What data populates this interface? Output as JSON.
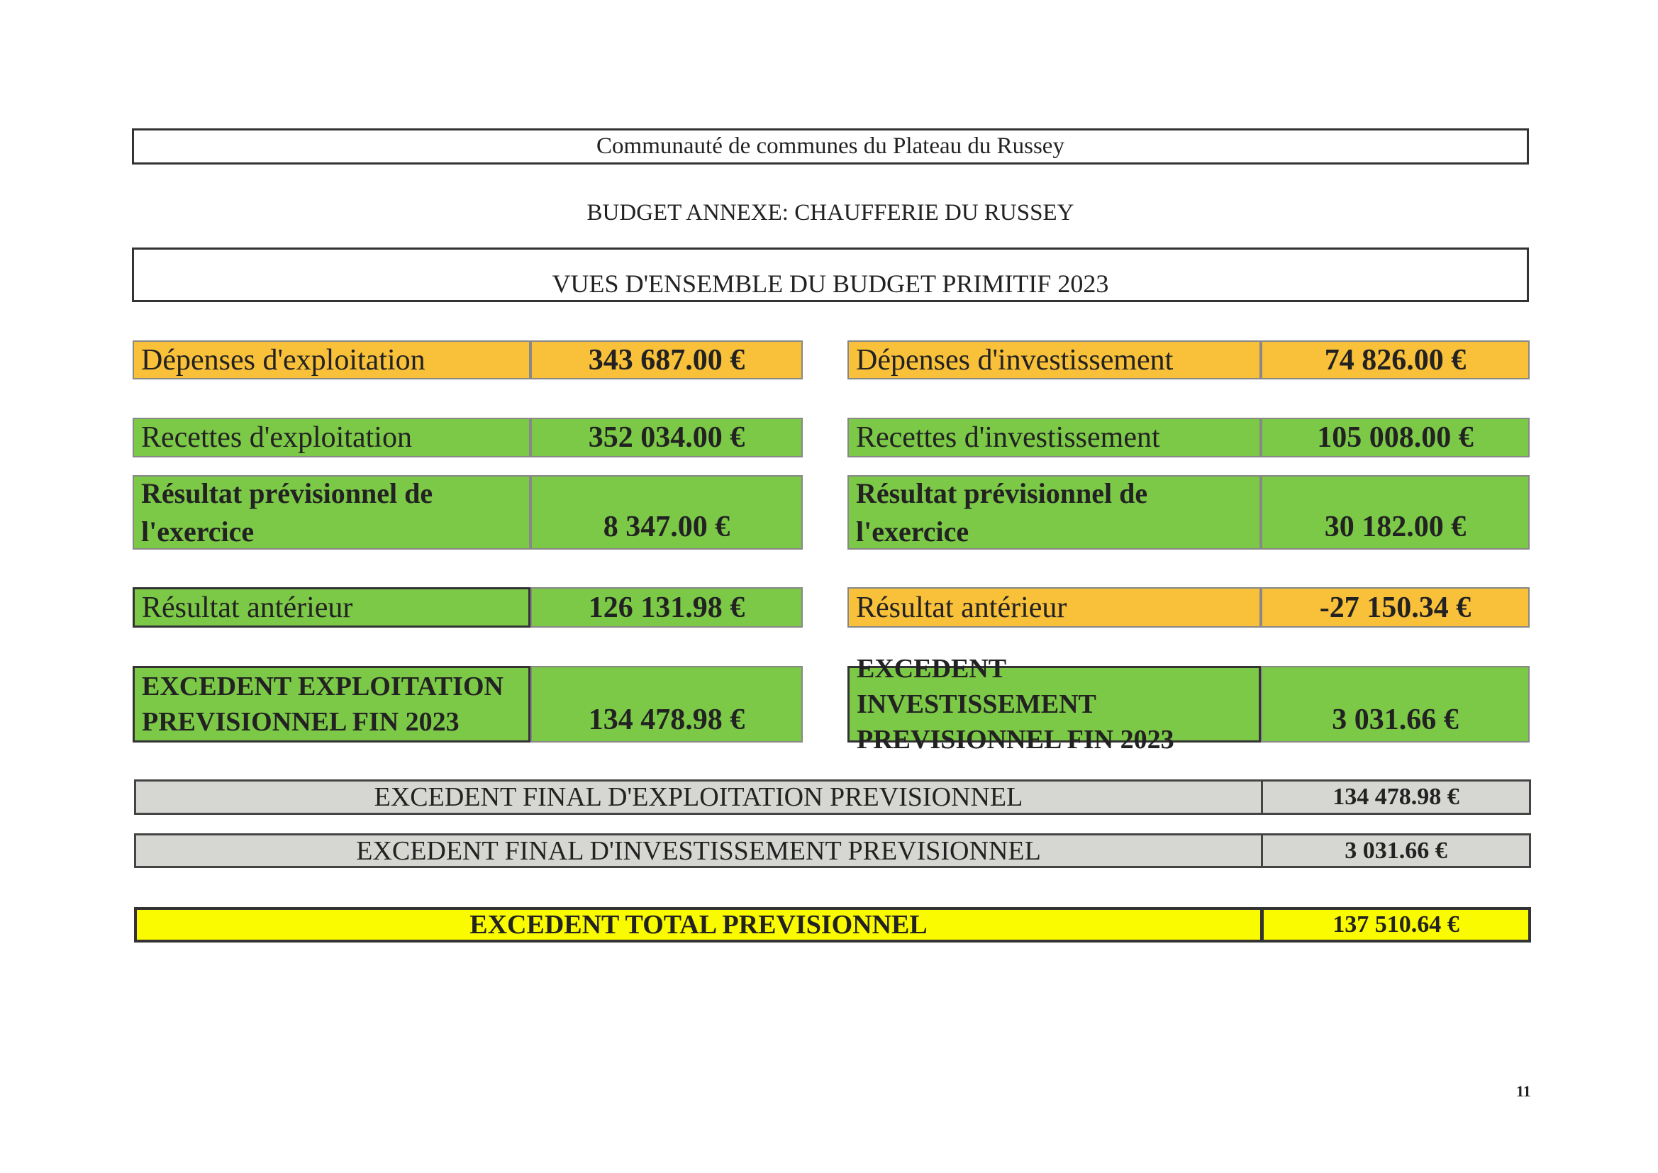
{
  "header": {
    "organisation": "Communauté de communes du Plateau du Russey",
    "subtitle": "BUDGET ANNEXE: CHAUFFERIE DU RUSSEY",
    "title": "VUES D'ENSEMBLE DU BUDGET PRIMITIF 2023"
  },
  "exploitation": {
    "depenses": {
      "label": "Dépenses d'exploitation",
      "value": "343 687.00 €"
    },
    "recettes": {
      "label": "Recettes d'exploitation",
      "value": "352 034.00 €"
    },
    "resultat_previsionnel": {
      "label_line1": "Résultat prévisionnel de",
      "label_line2": "l'exercice",
      "value": "8 347.00 €"
    },
    "resultat_anterieur": {
      "label": "Résultat antérieur",
      "value": "126 131.98 €"
    },
    "excedent": {
      "label_line1": "EXCEDENT EXPLOITATION",
      "label_line2": "PREVISIONNEL FIN 2023",
      "value": "134 478.98 €"
    }
  },
  "investissement": {
    "depenses": {
      "label": "Dépenses d'investissement",
      "value": "74 826.00 €"
    },
    "recettes": {
      "label": "Recettes d'investissement",
      "value": "105 008.00 €"
    },
    "resultat_previsionnel": {
      "label_line1": "Résultat prévisionnel de",
      "label_line2": "l'exercice",
      "value": "30 182.00 €"
    },
    "resultat_anterieur": {
      "label": "Résultat antérieur",
      "value": "-27 150.34 €"
    },
    "excedent": {
      "label_line1": "EXCEDENT INVESTISSEMENT",
      "label_line2": "PREVISIONNEL FIN 2023",
      "value": "3 031.66 €"
    }
  },
  "finals": [
    {
      "label": "EXCEDENT FINAL D'EXPLOITATION PREVISIONNEL",
      "value": "134 478.98 €"
    },
    {
      "label": "EXCEDENT FINAL D'INVESTISSEMENT PREVISIONNEL",
      "value": "3 031.66 €"
    },
    {
      "label": "EXCEDENT TOTAL PREVISIONNEL",
      "value": "137 510.64 €"
    }
  ],
  "colors": {
    "depenses": "#f9c03a",
    "recettes": "#7cc847",
    "final": "#d6d6d2",
    "total": "#fbfb00"
  },
  "page_number": "11"
}
